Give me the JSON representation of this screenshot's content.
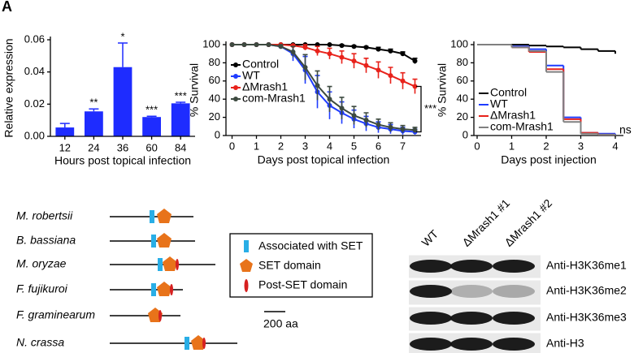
{
  "panel_label": "A",
  "chart_data": [
    {
      "type": "bar",
      "ylabel": "Relative expression",
      "xlabel": "Hours post topical infection",
      "categories": [
        "12",
        "24",
        "36",
        "60",
        "84"
      ],
      "values": [
        0.0055,
        0.0155,
        0.043,
        0.012,
        0.0205
      ],
      "errors": [
        0.0025,
        0.0015,
        0.015,
        0.0005,
        0.0007
      ],
      "annotations": [
        null,
        "**",
        "*",
        "***",
        "***"
      ],
      "color": "#1e2cff",
      "ylim": [
        0,
        0.06
      ],
      "yticks": [
        {
          "value": 0,
          "label": "0.00"
        },
        {
          "value": 0.02,
          "label": "0.02"
        },
        {
          "value": 0.04,
          "label": "0.04"
        },
        {
          "value": 0.06,
          "label": "0.06"
        }
      ]
    },
    {
      "type": "line",
      "ylabel": "% Survival",
      "xlabel": "Days post topical infection",
      "x": [
        0,
        0.5,
        1,
        1.5,
        2,
        2.5,
        3,
        3.5,
        4,
        4.5,
        5,
        5.5,
        6,
        6.5,
        7,
        7.5
      ],
      "series": [
        {
          "name": "Control",
          "color": "#000000",
          "values": [
            100,
            100,
            100,
            100,
            100,
            100,
            100,
            100,
            100,
            99,
            98,
            97,
            95,
            93,
            90,
            82
          ],
          "errors": [
            0,
            0,
            0,
            0,
            0,
            0,
            0,
            0,
            0,
            1,
            1,
            1,
            2,
            2,
            2,
            3
          ]
        },
        {
          "name": "WT",
          "color": "#1f3cff",
          "values": [
            100,
            100,
            100,
            100,
            98,
            90,
            72,
            48,
            33,
            25,
            18,
            13,
            9,
            7,
            5,
            4
          ],
          "errors": [
            0,
            0,
            0,
            0,
            2,
            8,
            15,
            18,
            15,
            12,
            10,
            8,
            6,
            5,
            4,
            3
          ]
        },
        {
          "name": "ΔMrash1",
          "color": "#e8221b",
          "values": [
            100,
            100,
            100,
            100,
            100,
            99,
            97,
            93,
            90,
            86,
            82,
            77,
            72,
            66,
            60,
            54
          ],
          "errors": [
            0,
            0,
            0,
            0,
            0,
            1,
            3,
            5,
            6,
            7,
            8,
            8,
            9,
            9,
            9,
            8
          ]
        },
        {
          "name": "com-Mrash1",
          "color": "#3d4a40",
          "values": [
            100,
            100,
            100,
            100,
            98,
            92,
            75,
            55,
            40,
            30,
            22,
            17,
            12,
            9,
            7,
            6
          ],
          "errors": [
            0,
            0,
            0,
            0,
            2,
            6,
            14,
            16,
            14,
            12,
            10,
            8,
            6,
            5,
            4,
            3
          ]
        }
      ],
      "bracket_annotation": "***",
      "legend": "center left",
      "xlim": [
        -0.25,
        7.75
      ],
      "xticks": [
        0,
        1,
        2,
        3,
        4,
        5,
        6,
        7
      ],
      "ylim": [
        0,
        100
      ],
      "yticks": [
        0,
        20,
        40,
        60,
        80,
        100
      ]
    },
    {
      "type": "step",
      "ylabel": "% Survival",
      "xlabel": "Days post injection",
      "x": [
        0,
        1,
        1.5,
        2,
        2.5,
        3,
        3.5,
        4
      ],
      "series": [
        {
          "name": "Control",
          "color": "#000000",
          "values": [
            100,
            100,
            99,
            98,
            97,
            95,
            93,
            90
          ]
        },
        {
          "name": "WT",
          "color": "#1f3cff",
          "values": [
            100,
            98,
            95,
            77,
            20,
            3,
            2,
            0
          ]
        },
        {
          "name": "ΔMrash1",
          "color": "#e8221b",
          "values": [
            100,
            97,
            92,
            73,
            18,
            3,
            1,
            0
          ]
        },
        {
          "name": "com-Mrash1",
          "color": "#808080",
          "values": [
            100,
            97,
            93,
            70,
            15,
            2,
            1,
            0
          ]
        }
      ],
      "end_annotation": "ns",
      "legend": "lower left",
      "xlim": [
        0,
        4
      ],
      "xticks": [
        0,
        1,
        2,
        3,
        4
      ],
      "ylim": [
        0,
        100
      ],
      "yticks": [
        0,
        20,
        40,
        60,
        80,
        100
      ]
    }
  ],
  "domains": {
    "species": [
      "M. robertsii",
      "B. bassiana",
      "M. oryzae",
      "F. fujikuroi",
      "F. graminearum",
      "N. crassa"
    ],
    "legend": [
      "Associated with SET",
      "SET domain",
      "Post-SET domain"
    ],
    "scale_label": "200 aa"
  },
  "blot": {
    "lanes": [
      "WT",
      "ΔMrash1 #1",
      "ΔMrash1 #2"
    ],
    "rows": [
      "Anti-H3K36me1",
      "Anti-H3K36me2",
      "Anti-H3K36me3",
      "Anti-H3"
    ]
  }
}
